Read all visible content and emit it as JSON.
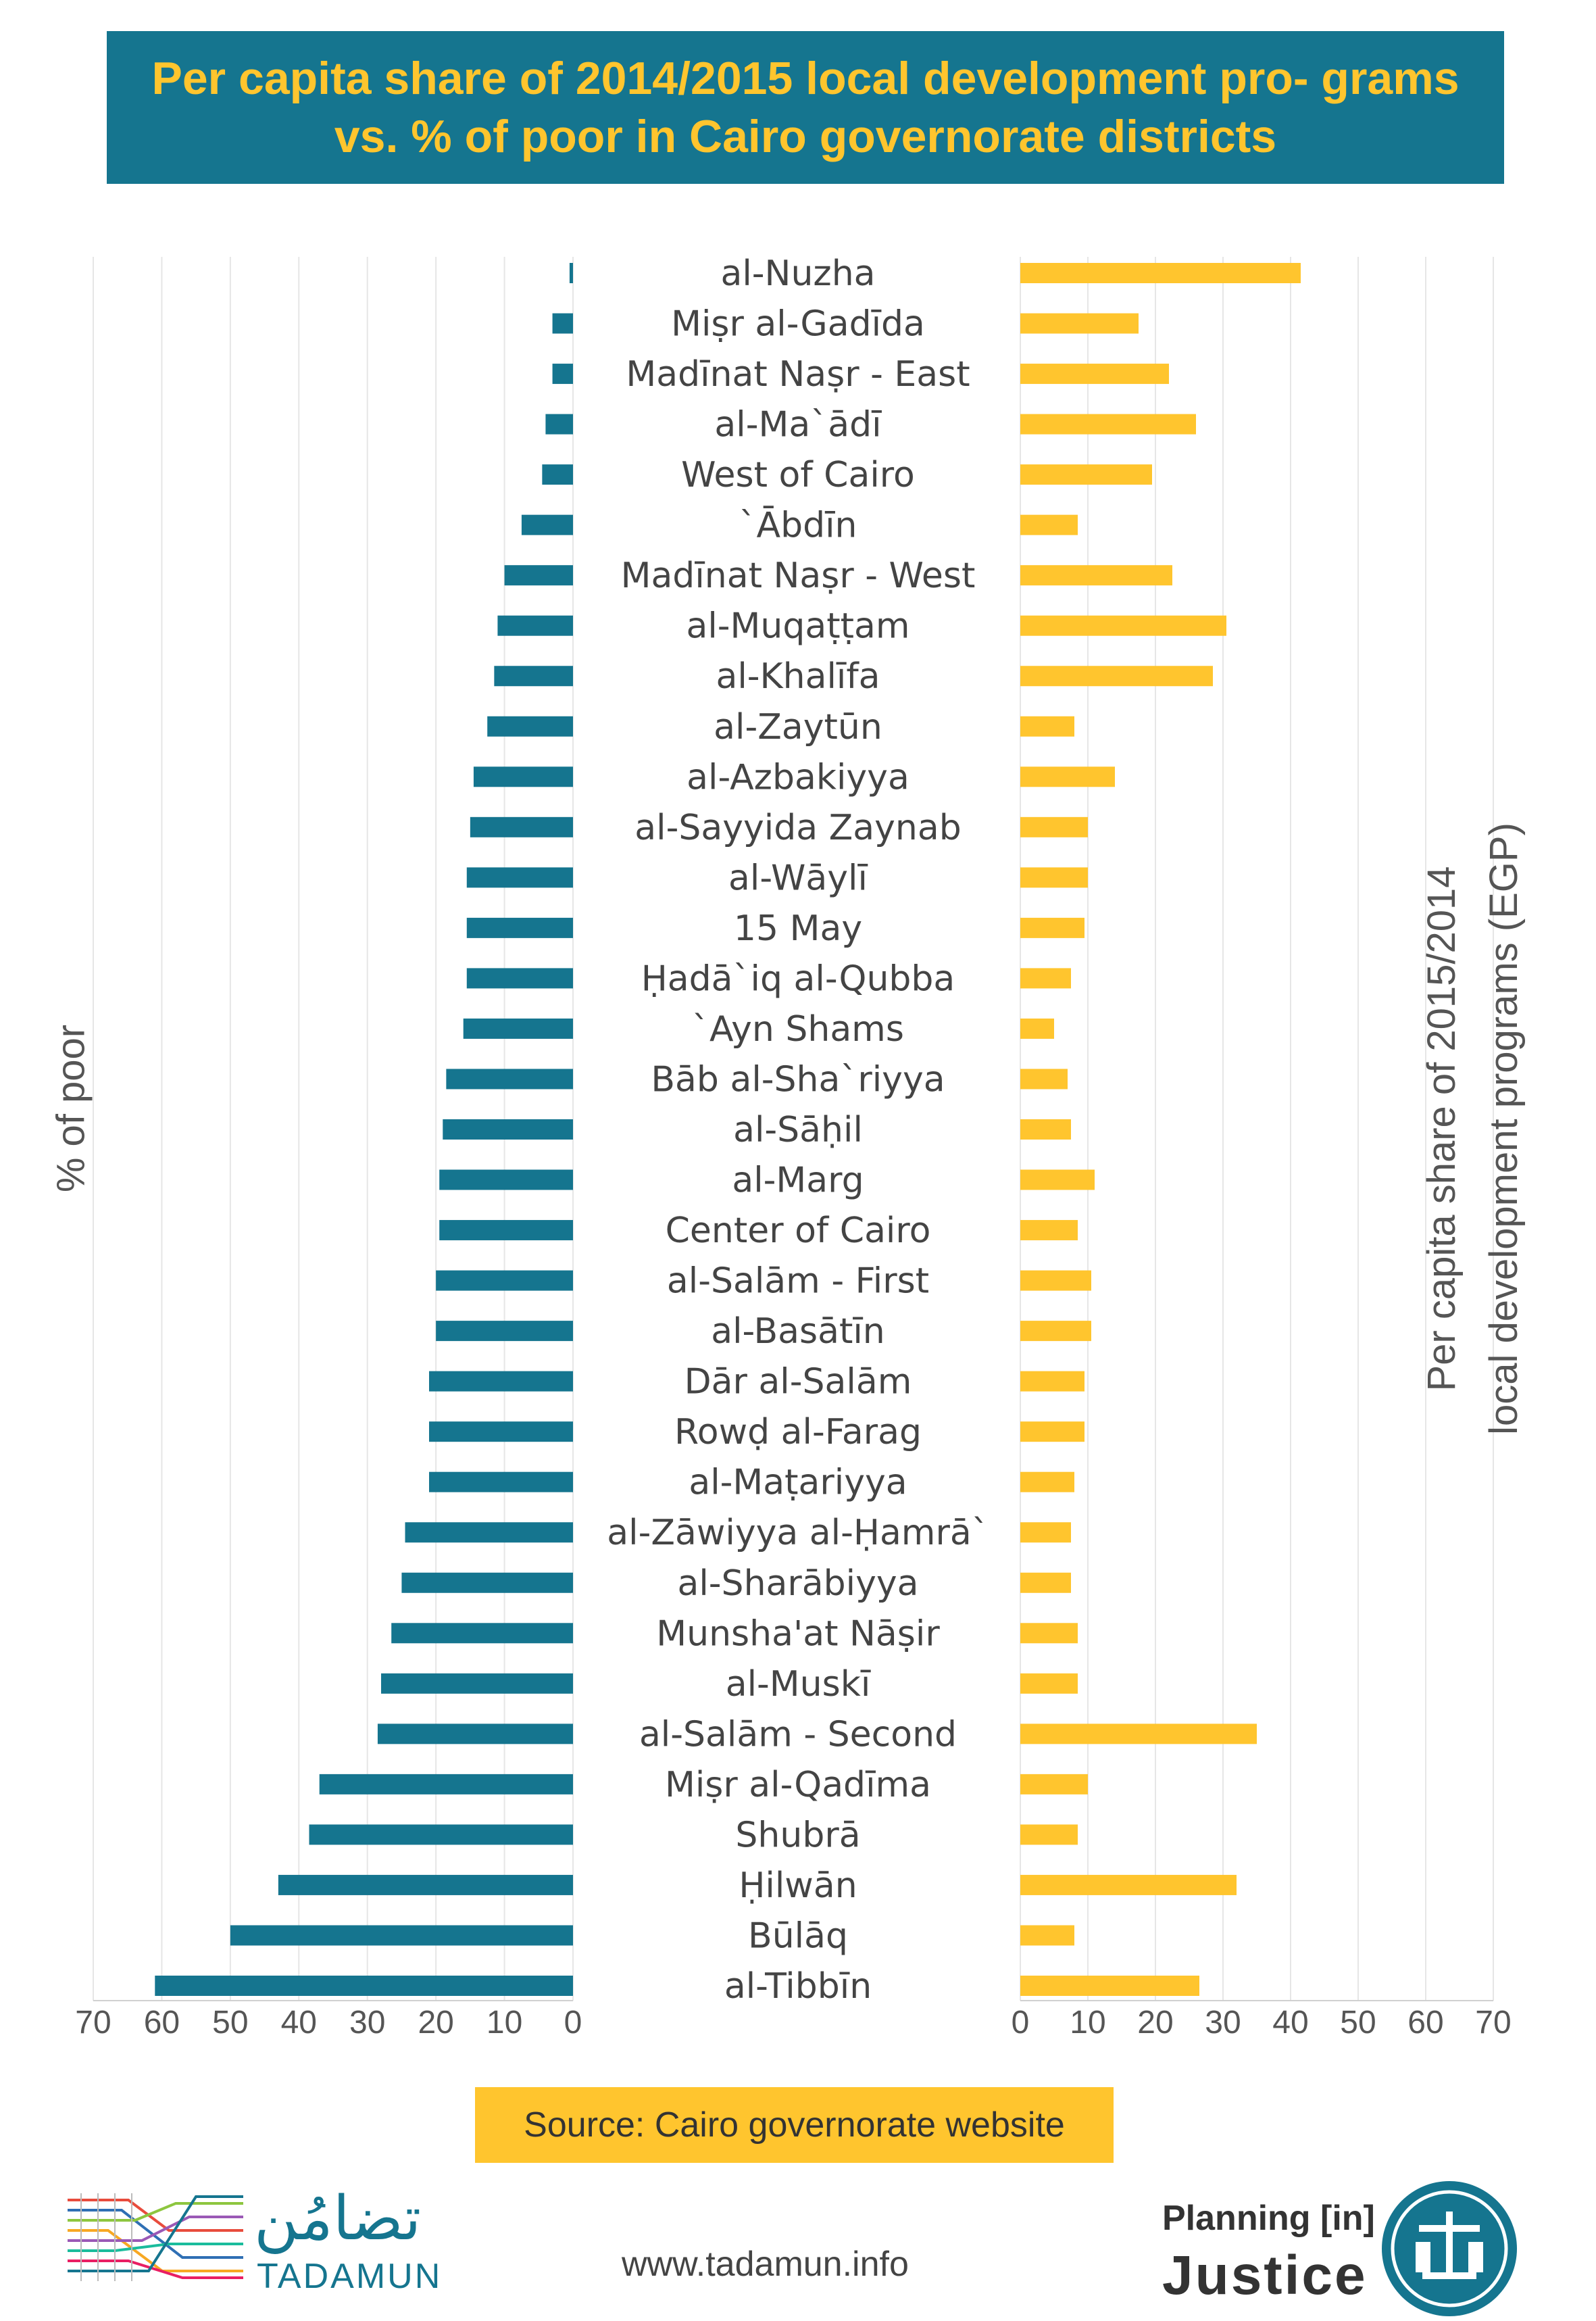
{
  "title": "Per capita share of 2014/2015 local development pro- grams vs. % of poor in Cairo governorate districts",
  "chart_data": {
    "type": "bar",
    "orientation": "horizontal-butterfly",
    "categories": [
      "al-Nuzha",
      "Miṣr al-Gadīda",
      "Madīnat Naṣr - East",
      "al-Ma`ādī",
      "West of Cairo",
      "`Ābdīn",
      "Madīnat Naṣr - West",
      "al-Muqaṭṭam",
      "al-Khalīfa",
      "al-Zaytūn",
      "al-Azbakiyya",
      "al-Sayyida Zaynab",
      "al-Wāylī",
      "15 May",
      "Ḥadā`iq al-Qubba",
      "`Ayn Shams",
      "Bāb al-Sha`riyya",
      "al-Sāḥil",
      "al-Marg",
      "Center of Cairo",
      "al-Salām - First",
      "al-Basātīn",
      "Dār al-Salām",
      "Rowḍ al-Farag",
      "al-Maṭariyya",
      "al-Zāwiyya al-Ḥamrā`",
      "al-Sharābiyya",
      "Munsha'at Nāṣir",
      "al-Muskī",
      "al-Salām - Second",
      "Miṣr al-Qadīma",
      "Shubrā",
      "Ḥilwān",
      "Būlāq",
      "al-Tibbīn"
    ],
    "series": [
      {
        "name": "% of poor",
        "side": "left",
        "color": "#15758f",
        "values": [
          0.5,
          3,
          3,
          4,
          4.5,
          7.5,
          10,
          11,
          11.5,
          12.5,
          14.5,
          15,
          15.5,
          15.5,
          15.5,
          16,
          18.5,
          19,
          19.5,
          19.5,
          20,
          20,
          21,
          21,
          21,
          24.5,
          25,
          26.5,
          28,
          28.5,
          37,
          38.5,
          43,
          50,
          61
        ]
      },
      {
        "name": "Per capita share of 2015/2014 local development programs (EGP)",
        "side": "right",
        "color": "#ffc52e",
        "values": [
          41.5,
          17.5,
          22,
          26,
          19.5,
          8.5,
          22.5,
          30.5,
          28.5,
          8,
          14,
          10,
          10,
          9.5,
          7.5,
          5,
          7,
          7.5,
          11,
          8.5,
          10.5,
          10.5,
          9.5,
          9.5,
          8,
          7.5,
          7.5,
          8.5,
          8.5,
          35,
          10,
          8.5,
          32,
          8,
          26.5
        ]
      }
    ],
    "left_axis": {
      "label": "% of poor",
      "ticks": [
        "70",
        "60",
        "50",
        "40",
        "30",
        "20",
        "10",
        "0"
      ],
      "range": [
        0,
        70
      ]
    },
    "right_axis": {
      "label_line1": "Per capita share of 2015/2014",
      "label_line2": "local development programs (EGP)",
      "ticks": [
        "0",
        "10",
        "20",
        "30",
        "40",
        "50",
        "60",
        "70"
      ],
      "range": [
        0,
        70
      ]
    },
    "grid": true
  },
  "source": "Source: Cairo governorate website",
  "footer": {
    "logo_left_ar": "تضامُن",
    "logo_left_en": "TADAMUN",
    "website": "www.tadamun.info",
    "logo_right_line1": "Planning [in]",
    "logo_right_line2": "Justice"
  },
  "colors": {
    "title_bg": "#15758f",
    "title_text": "#ffc52e",
    "poor_bar": "#15758f",
    "share_bar": "#ffc52e",
    "source_bg": "#ffc52e"
  }
}
